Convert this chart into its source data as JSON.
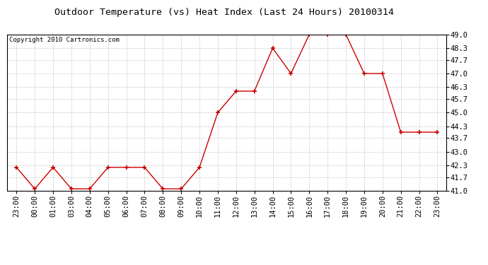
{
  "title": "Outdoor Temperature (vs) Heat Index (Last 24 Hours) 20100314",
  "copyright": "Copyright 2010 Cartronics.com",
  "x_labels": [
    "23:00",
    "00:00",
    "01:00",
    "03:00",
    "04:00",
    "05:00",
    "06:00",
    "07:00",
    "08:00",
    "09:00",
    "10:00",
    "11:00",
    "12:00",
    "13:00",
    "14:00",
    "15:00",
    "16:00",
    "17:00",
    "18:00",
    "19:00",
    "20:00",
    "21:00",
    "22:00",
    "23:00"
  ],
  "y_values": [
    42.2,
    41.1,
    42.2,
    41.1,
    41.1,
    42.2,
    42.2,
    42.2,
    41.1,
    41.1,
    42.2,
    45.0,
    46.1,
    46.1,
    48.3,
    47.0,
    49.0,
    49.0,
    49.0,
    47.0,
    47.0,
    44.0,
    44.0,
    44.0
  ],
  "line_color": "#cc0000",
  "marker_color": "#cc0000",
  "background_color": "#ffffff",
  "grid_color": "#c8c8c8",
  "title_fontsize": 9.5,
  "copyright_fontsize": 6.5,
  "tick_fontsize": 7.5,
  "ylim": [
    41.0,
    49.0
  ],
  "yticks": [
    41.0,
    41.7,
    42.3,
    43.0,
    43.7,
    44.3,
    45.0,
    45.7,
    46.3,
    47.0,
    47.7,
    48.3,
    49.0
  ]
}
